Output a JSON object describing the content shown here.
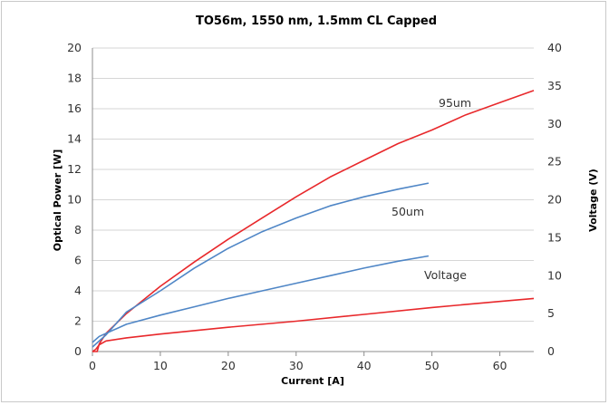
{
  "chart_data": {
    "type": "line",
    "title": "TO56m, 1550 nm, 1.5mm CL Capped",
    "xlabel": "Current [A]",
    "ylabel": "Optical Power [W]",
    "y2label": "Voltage (V)",
    "xlim": [
      0,
      65
    ],
    "ylim": [
      0,
      20
    ],
    "y2lim": [
      0,
      40
    ],
    "xticks": [
      "0",
      "10",
      "20",
      "30",
      "40",
      "50",
      "60"
    ],
    "yticks": [
      "0",
      "2",
      "4",
      "6",
      "8",
      "10",
      "12",
      "14",
      "16",
      "18",
      "20"
    ],
    "y2ticks": [
      "0",
      "5",
      "10",
      "15",
      "20",
      "25",
      "30",
      "35",
      "40"
    ],
    "grid": true,
    "legend": "none",
    "colors": {
      "red": "#e8282b",
      "blue": "#4f86c6"
    },
    "annotations": {
      "a95": "95um",
      "a50": "50um",
      "voltage": "Voltage"
    },
    "series": [
      {
        "color": "red",
        "axis": "left",
        "x": [
          0,
          0.7,
          1,
          2,
          5,
          10,
          15,
          20,
          25,
          30,
          35,
          40,
          45,
          50,
          55,
          60,
          65
        ],
        "y": [
          0,
          0,
          0.5,
          1.2,
          2.5,
          4.3,
          5.9,
          7.4,
          8.8,
          10.2,
          11.5,
          12.6,
          13.7,
          14.6,
          15.6,
          16.4,
          17.2
        ]
      },
      {
        "color": "blue",
        "axis": "left",
        "x": [
          0,
          2,
          5,
          10,
          15,
          20,
          25,
          30,
          35,
          40,
          45,
          49.5
        ],
        "y": [
          0.3,
          1.1,
          2.6,
          4.0,
          5.5,
          6.8,
          7.9,
          8.8,
          9.6,
          10.2,
          10.7,
          11.1
        ]
      },
      {
        "color": "blue",
        "axis": "right",
        "x": [
          0,
          1,
          5,
          10,
          15,
          20,
          25,
          30,
          35,
          40,
          45,
          49.5
        ],
        "y": [
          1.2,
          2.0,
          3.6,
          4.8,
          5.9,
          7.0,
          8.0,
          9.0,
          10.0,
          11.0,
          11.9,
          12.6
        ]
      },
      {
        "color": "red",
        "axis": "right",
        "x": [
          0,
          0.5,
          1,
          2,
          5,
          10,
          20,
          30,
          40,
          50,
          60,
          65
        ],
        "y": [
          0,
          0.3,
          0.9,
          1.4,
          1.8,
          2.3,
          3.2,
          4.0,
          4.9,
          5.8,
          6.6,
          7.0
        ]
      }
    ]
  }
}
